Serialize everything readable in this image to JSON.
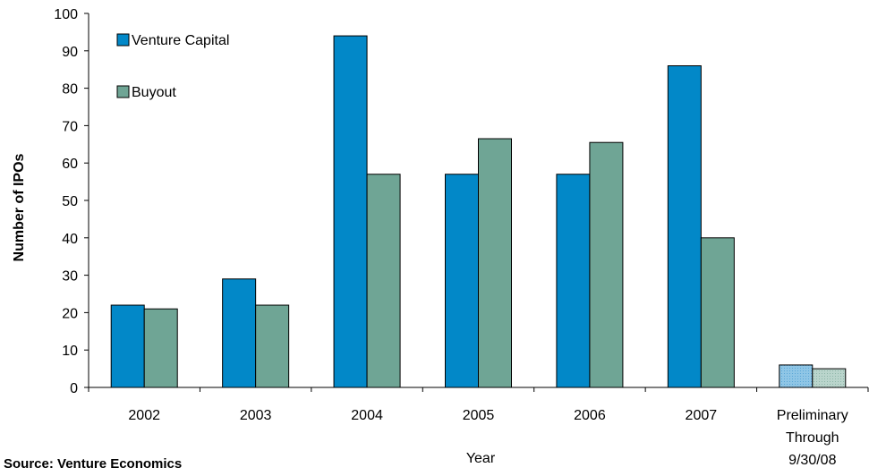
{
  "chart_data": {
    "type": "bar",
    "categories": [
      "2002",
      "2003",
      "2004",
      "2005",
      "2006",
      "2007",
      "Preliminary Through 9/30/08"
    ],
    "category_label_lines": [
      [
        "2002"
      ],
      [
        "2003"
      ],
      [
        "2004"
      ],
      [
        "2005"
      ],
      [
        "2006"
      ],
      [
        "2007"
      ],
      [
        "Preliminary",
        "Through",
        "9/30/08"
      ]
    ],
    "series": [
      {
        "name": "Venture Capital",
        "values": [
          22,
          29,
          94,
          57,
          57,
          86,
          6
        ],
        "color": "#0288C8"
      },
      {
        "name": "Buyout",
        "values": [
          21,
          22,
          57,
          66.5,
          65.5,
          40,
          5
        ],
        "color": "#6FA595"
      }
    ],
    "preliminary_colors": [
      "#8FC6E6",
      "#BAD5CC"
    ],
    "xlabel": "Year",
    "ylabel": "Number of IPOs",
    "ylim": [
      0,
      100
    ],
    "yticks": [
      0,
      10,
      20,
      30,
      40,
      50,
      60,
      70,
      80,
      90,
      100
    ],
    "grid": false,
    "legend_position": "top-left"
  },
  "source_note": "Source:  Venture Economics"
}
